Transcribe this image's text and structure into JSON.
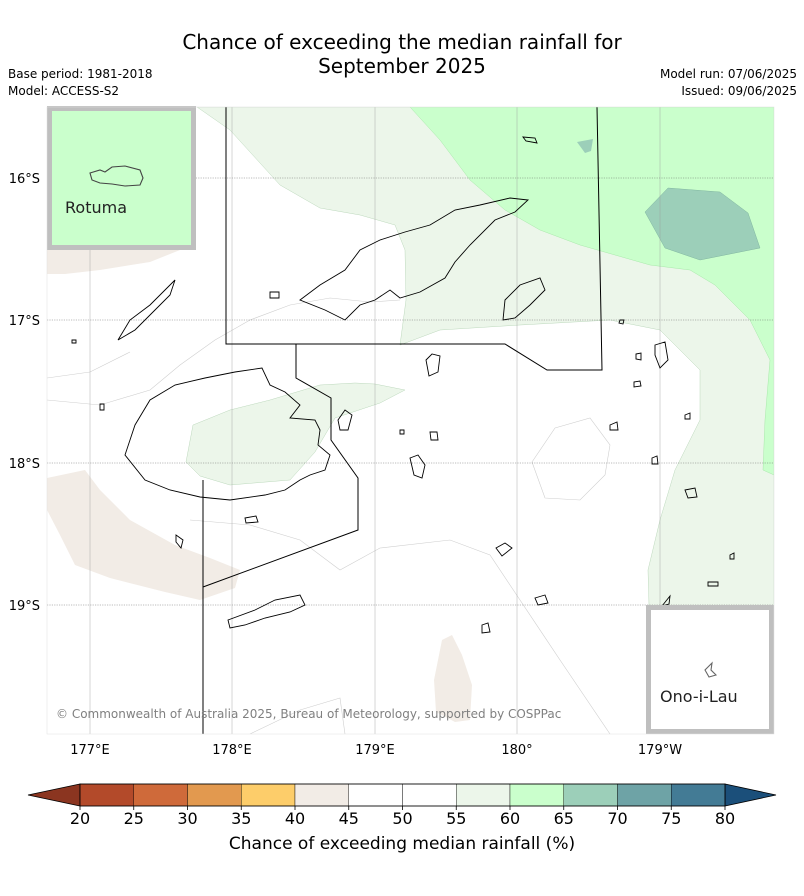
{
  "title": {
    "line1": "Chance of exceeding the median rainfall for",
    "line2": "September 2025"
  },
  "info_left": {
    "base_period": "Base period: 1981-2018",
    "model": "Model: ACCESS-S2"
  },
  "info_right": {
    "model_run": "Model run: 07/06/2025",
    "issued": "Issued: 09/06/2025"
  },
  "map": {
    "lat_labels": [
      "16°S",
      "17°S",
      "18°S",
      "19°S"
    ],
    "lon_labels": [
      "177°E",
      "178°E",
      "179°E",
      "180°",
      "179°W"
    ],
    "inset_rotuma": "Rotuma",
    "inset_onoilau": "Ono-i-Lau",
    "copyright": "© Commonwealth of Australia 2025, Bureau of Meteorology, supported by COSPPac"
  },
  "colorbar": {
    "ticks": [
      "20",
      "25",
      "30",
      "35",
      "40",
      "45",
      "50",
      "55",
      "60",
      "65",
      "70",
      "75",
      "80"
    ],
    "label": "Chance of exceeding median rainfall (%)",
    "colors": [
      "#b34a2a",
      "#cf6a3a",
      "#e2994f",
      "#fdcd6a",
      "#f2ece6",
      "#ffffff",
      "#ffffff",
      "#ecf6ea",
      "#caffcc",
      "#9ccfb9",
      "#6ea3a6",
      "#437b95"
    ],
    "low_extend_color": "#8b3520",
    "high_extend_color": "#1b4f7a"
  }
}
